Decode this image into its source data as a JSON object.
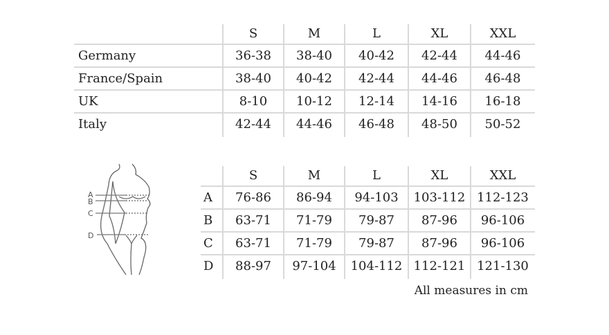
{
  "conversion_table": {
    "headers": [
      "",
      "S",
      "M",
      "L",
      "XL",
      "XXL"
    ],
    "rows": [
      [
        "Germany",
        "36-38",
        "38-40",
        "40-42",
        "42-44",
        "44-46"
      ],
      [
        "France/Spain",
        "38-40",
        "40-42",
        "42-44",
        "44-46",
        "46-48"
      ],
      [
        "UK",
        "8-10",
        "10-12",
        "12-14",
        "14-16",
        "16-18"
      ],
      [
        "Italy",
        "42-44",
        "44-46",
        "46-48",
        "48-50",
        "50-52"
      ]
    ]
  },
  "measure_table": {
    "headers": [
      "",
      "S",
      "M",
      "L",
      "XL",
      "XXL"
    ],
    "rows": [
      [
        "A",
        "76-86",
        "86-94",
        "94-103",
        "103-112",
        "112-123"
      ],
      [
        "B",
        "63-71",
        "71-79",
        "79-87",
        "87-96",
        "96-106"
      ],
      [
        "C",
        "63-71",
        "71-79",
        "79-87",
        "87-96",
        "96-106"
      ],
      [
        "D",
        "88-97",
        "97-104",
        "104-112",
        "112-121",
        "121-130"
      ]
    ]
  },
  "figure": {
    "labels": [
      "A",
      "B",
      "C",
      "D"
    ]
  },
  "note": "All measures in cm"
}
